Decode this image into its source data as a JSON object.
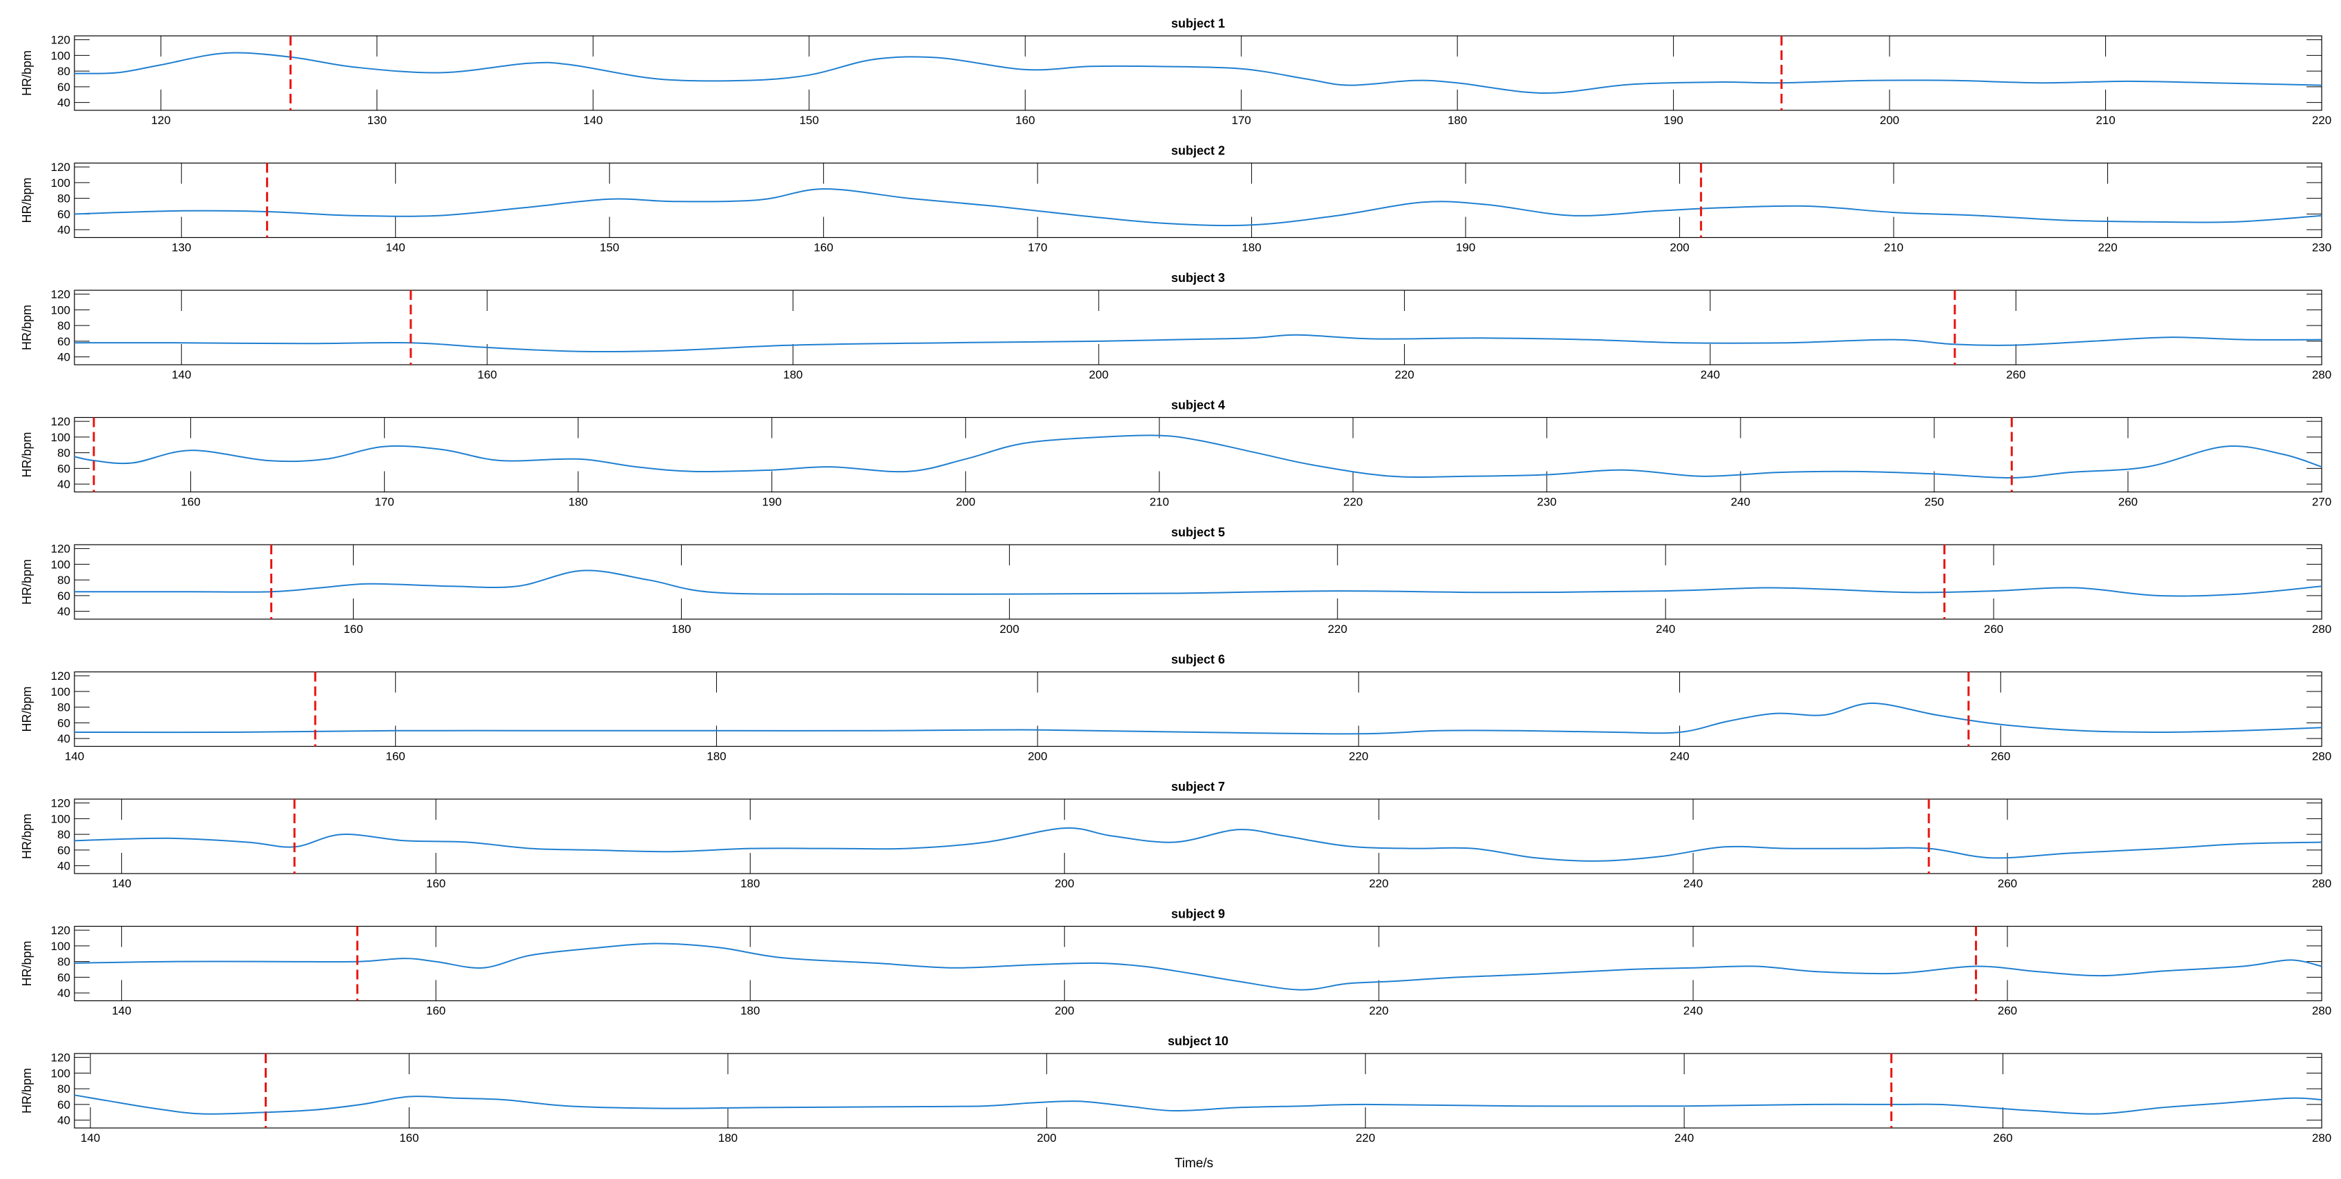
{
  "figure": {
    "xlabel": "Time/s",
    "colors": {
      "signal": "#1f7fd0",
      "event": "#e8150f",
      "axis": "#000000"
    }
  },
  "chart_data": [
    {
      "type": "line",
      "title": "subject 1",
      "ylabel": "HR/bpm",
      "xlim": [
        116,
        220
      ],
      "ylim": [
        30,
        125
      ],
      "yticks": [
        40,
        60,
        80,
        100,
        120
      ],
      "xticks": [
        120,
        130,
        140,
        150,
        160,
        170,
        180,
        190,
        200,
        210,
        220
      ],
      "event_lines": [
        126,
        195
      ],
      "series": [
        {
          "x": [
            116,
            118,
            120,
            123,
            126,
            129,
            133,
            137,
            139,
            143,
            147,
            150,
            153,
            156,
            160,
            163,
            166,
            170,
            173,
            175,
            178,
            180,
            184,
            188,
            192,
            195,
            199,
            203,
            207,
            211,
            215,
            220
          ],
          "y": [
            77,
            78,
            88,
            103,
            98,
            85,
            78,
            90,
            88,
            70,
            68,
            75,
            95,
            97,
            82,
            86,
            86,
            83,
            70,
            62,
            68,
            65,
            52,
            63,
            66,
            65,
            68,
            68,
            65,
            67,
            65,
            62
          ]
        }
      ]
    },
    {
      "type": "line",
      "title": "subject 2",
      "ylabel": "HR/bpm",
      "xlim": [
        125,
        230
      ],
      "ylim": [
        30,
        125
      ],
      "yticks": [
        40,
        60,
        80,
        100,
        120
      ],
      "xticks": [
        130,
        140,
        150,
        160,
        170,
        180,
        190,
        200,
        210,
        220,
        230
      ],
      "event_lines": [
        134,
        201
      ],
      "series": [
        {
          "x": [
            125,
            130,
            134,
            138,
            142,
            146,
            150,
            153,
            157,
            160,
            164,
            168,
            172,
            176,
            180,
            184,
            188,
            191,
            195,
            199,
            202,
            206,
            210,
            214,
            218,
            222,
            226,
            230
          ],
          "y": [
            60,
            64,
            63,
            58,
            58,
            68,
            79,
            76,
            78,
            92,
            80,
            70,
            58,
            48,
            46,
            58,
            75,
            72,
            58,
            64,
            68,
            70,
            62,
            58,
            52,
            50,
            50,
            58
          ]
        }
      ]
    },
    {
      "type": "line",
      "title": "subject 3",
      "ylabel": "HR/bpm",
      "xlim": [
        133,
        280
      ],
      "ylim": [
        30,
        125
      ],
      "yticks": [
        40,
        60,
        80,
        100,
        120
      ],
      "xticks": [
        140,
        160,
        180,
        200,
        220,
        240,
        260,
        280
      ],
      "event_lines": [
        155,
        256
      ],
      "series": [
        {
          "x": [
            133,
            140,
            148,
            155,
            160,
            166,
            172,
            180,
            190,
            200,
            205,
            210,
            213,
            218,
            225,
            232,
            238,
            245,
            252,
            256,
            260,
            265,
            270,
            275,
            280
          ],
          "y": [
            58,
            58,
            57,
            58,
            52,
            47,
            48,
            55,
            58,
            60,
            62,
            64,
            68,
            63,
            64,
            62,
            58,
            58,
            62,
            56,
            55,
            60,
            65,
            62,
            62
          ]
        }
      ]
    },
    {
      "type": "line",
      "title": "subject 4",
      "ylabel": "HR/bpm",
      "xlim": [
        154,
        270
      ],
      "ylim": [
        30,
        125
      ],
      "yticks": [
        40,
        60,
        80,
        100,
        120
      ],
      "xticks": [
        160,
        170,
        180,
        190,
        200,
        210,
        220,
        230,
        240,
        250,
        260,
        270
      ],
      "event_lines": [
        155,
        254
      ],
      "series": [
        {
          "x": [
            154,
            155,
            157,
            160,
            164,
            167,
            170,
            173,
            176,
            180,
            183,
            186,
            190,
            193,
            197,
            200,
            203,
            207,
            210,
            212,
            215,
            218,
            222,
            226,
            230,
            234,
            238,
            242,
            246,
            250,
            254,
            257,
            261,
            265,
            268,
            270
          ],
          "y": [
            75,
            70,
            67,
            83,
            70,
            72,
            88,
            84,
            70,
            72,
            62,
            56,
            58,
            62,
            56,
            72,
            92,
            100,
            102,
            96,
            80,
            64,
            50,
            50,
            52,
            58,
            50,
            55,
            56,
            53,
            48,
            55,
            62,
            88,
            78,
            62
          ]
        }
      ]
    },
    {
      "type": "line",
      "title": "subject 5",
      "ylabel": "HR/bpm",
      "xlim": [
        143,
        280
      ],
      "ylim": [
        30,
        125
      ],
      "yticks": [
        40,
        60,
        80,
        100,
        120
      ],
      "xticks": [
        160,
        180,
        200,
        220,
        240,
        260,
        280
      ],
      "event_lines": [
        155,
        257
      ],
      "series": [
        {
          "x": [
            143,
            150,
            155,
            158,
            161,
            166,
            170,
            174,
            178,
            182,
            190,
            200,
            210,
            220,
            230,
            240,
            246,
            250,
            255,
            260,
            265,
            270,
            275,
            280
          ],
          "y": [
            65,
            65,
            65,
            70,
            75,
            72,
            72,
            92,
            80,
            64,
            62,
            62,
            63,
            66,
            64,
            66,
            70,
            68,
            64,
            66,
            70,
            60,
            62,
            72
          ]
        }
      ]
    },
    {
      "type": "line",
      "title": "subject 6",
      "ylabel": "HR/bpm",
      "xlim": [
        140,
        280
      ],
      "ylim": [
        30,
        125
      ],
      "yticks": [
        40,
        60,
        80,
        100,
        120
      ],
      "xticks": [
        140,
        160,
        180,
        200,
        220,
        240,
        260,
        280
      ],
      "event_lines": [
        155,
        258
      ],
      "series": [
        {
          "x": [
            140,
            150,
            160,
            170,
            180,
            190,
            200,
            210,
            220,
            225,
            230,
            236,
            240,
            243,
            246,
            249,
            252,
            256,
            260,
            265,
            270,
            275,
            280
          ],
          "y": [
            48,
            48,
            50,
            50,
            50,
            50,
            51,
            48,
            46,
            50,
            50,
            48,
            48,
            62,
            72,
            70,
            85,
            70,
            58,
            50,
            48,
            50,
            54
          ]
        }
      ]
    },
    {
      "type": "line",
      "title": "subject 7",
      "ylabel": "HR/bpm",
      "xlim": [
        137,
        280
      ],
      "ylim": [
        30,
        125
      ],
      "yticks": [
        40,
        60,
        80,
        100,
        120
      ],
      "xticks": [
        140,
        160,
        180,
        200,
        220,
        240,
        260,
        280
      ],
      "event_lines": [
        151,
        255
      ],
      "series": [
        {
          "x": [
            137,
            143,
            148,
            151,
            154,
            158,
            162,
            166,
            170,
            175,
            180,
            185,
            190,
            195,
            200,
            203,
            207,
            211,
            214,
            218,
            222,
            226,
            230,
            234,
            238,
            242,
            246,
            251,
            255,
            259,
            264,
            270,
            275,
            280
          ],
          "y": [
            72,
            75,
            70,
            64,
            80,
            72,
            70,
            62,
            60,
            58,
            62,
            62,
            62,
            70,
            88,
            78,
            70,
            86,
            78,
            65,
            62,
            62,
            50,
            46,
            52,
            64,
            62,
            62,
            62,
            50,
            56,
            62,
            68,
            70
          ]
        }
      ]
    },
    {
      "type": "line",
      "title": "subject 9",
      "ylabel": "HR/bpm",
      "xlim": [
        137,
        280
      ],
      "ylim": [
        30,
        125
      ],
      "yticks": [
        40,
        60,
        80,
        100,
        120
      ],
      "xticks": [
        140,
        160,
        180,
        200,
        220,
        240,
        260,
        280
      ],
      "event_lines": [
        155,
        258
      ],
      "series": [
        {
          "x": [
            137,
            143,
            150,
            155,
            158,
            160,
            163,
            166,
            170,
            174,
            178,
            182,
            188,
            193,
            198,
            202,
            205,
            208,
            211,
            215,
            218,
            221,
            225,
            230,
            236,
            240,
            244,
            248,
            253,
            258,
            262,
            266,
            270,
            275,
            278,
            280
          ],
          "y": [
            78,
            80,
            80,
            80,
            84,
            80,
            72,
            88,
            97,
            103,
            98,
            85,
            78,
            72,
            76,
            78,
            74,
            65,
            55,
            44,
            52,
            55,
            60,
            64,
            70,
            72,
            74,
            67,
            65,
            74,
            67,
            62,
            68,
            74,
            82,
            74
          ]
        }
      ]
    },
    {
      "type": "line",
      "title": "subject 10",
      "ylabel": "HR/bpm",
      "xlim": [
        139,
        280
      ],
      "ylim": [
        30,
        125
      ],
      "yticks": [
        40,
        60,
        80,
        100,
        120
      ],
      "xticks": [
        140,
        160,
        180,
        200,
        220,
        240,
        260,
        280
      ],
      "event_lines": [
        151,
        253
      ],
      "series": [
        {
          "x": [
            139,
            141,
            144,
            147,
            151,
            154,
            157,
            160,
            163,
            166,
            170,
            176,
            182,
            190,
            196,
            199,
            202,
            205,
            208,
            212,
            216,
            220,
            230,
            240,
            248,
            253,
            256,
            259,
            262,
            266,
            270,
            274,
            278,
            280
          ],
          "y": [
            72,
            65,
            55,
            48,
            50,
            53,
            60,
            70,
            68,
            66,
            58,
            55,
            56,
            57,
            58,
            62,
            64,
            58,
            52,
            56,
            58,
            60,
            58,
            58,
            60,
            60,
            60,
            56,
            52,
            48,
            56,
            62,
            68,
            66
          ]
        }
      ]
    }
  ]
}
